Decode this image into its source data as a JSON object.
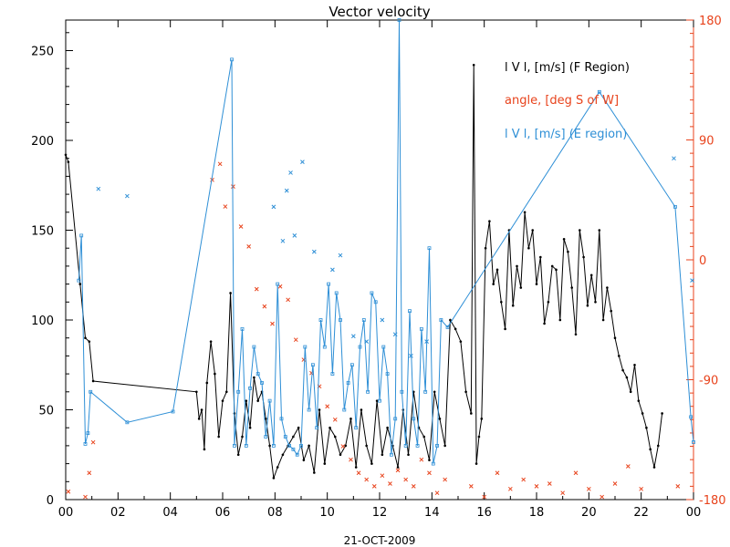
{
  "chart_data": {
    "type": "line",
    "title": "Vector velocity",
    "xlabel": "21-OCT-2009",
    "ylabel": "",
    "y2label": "",
    "xlim": [
      0,
      24
    ],
    "ylim": [
      0,
      267
    ],
    "y2lim": [
      -180,
      180
    ],
    "x_ticks": [
      "00",
      "02",
      "04",
      "06",
      "08",
      "10",
      "12",
      "14",
      "16",
      "18",
      "20",
      "22",
      "00"
    ],
    "y_ticks": [
      "0",
      "50",
      "100",
      "150",
      "200",
      "250"
    ],
    "y2_ticks": [
      "-180",
      "-90",
      "0",
      "90",
      "180"
    ],
    "colors": {
      "f_region": "#000000",
      "angle": "#e8431c",
      "e_region": "#2e8fd6",
      "axis": "#000000"
    },
    "legend": [
      {
        "label": "l V l, [m/s] (F Region)",
        "color": "#000000"
      },
      {
        "label": "angle, [deg S of W]",
        "color": "#e8431c"
      },
      {
        "label": "l V l, [m/s] (E region)",
        "color": "#2e8fd6"
      }
    ],
    "series": [
      {
        "name": "l V l, [m/s] (F Region)",
        "axis": "left",
        "style": "line-dots",
        "x": [
          0.0,
          0.1,
          0.55,
          0.75,
          0.9,
          1.05,
          5.0,
          5.1,
          5.2,
          5.3,
          5.4,
          5.55,
          5.7,
          5.85,
          6.0,
          6.15,
          6.3,
          6.45,
          6.6,
          6.75,
          6.9,
          7.05,
          7.2,
          7.35,
          7.5,
          7.65,
          7.8,
          7.95,
          8.1,
          8.3,
          8.5,
          8.7,
          8.9,
          9.1,
          9.3,
          9.5,
          9.7,
          9.9,
          10.1,
          10.3,
          10.5,
          10.7,
          10.9,
          11.1,
          11.3,
          11.5,
          11.7,
          11.9,
          12.1,
          12.3,
          12.5,
          12.7,
          12.9,
          13.1,
          13.3,
          13.5,
          13.7,
          13.9,
          14.1,
          14.3,
          14.5,
          14.7,
          14.9,
          15.1,
          15.3,
          15.5,
          15.6,
          15.7,
          15.8,
          15.9,
          16.05,
          16.2,
          16.35,
          16.5,
          16.65,
          16.8,
          16.95,
          17.1,
          17.25,
          17.4,
          17.55,
          17.7,
          17.85,
          18.0,
          18.15,
          18.3,
          18.45,
          18.6,
          18.75,
          18.9,
          19.05,
          19.2,
          19.35,
          19.5,
          19.65,
          19.8,
          19.95,
          20.1,
          20.25,
          20.4,
          20.55,
          20.7,
          20.85,
          21.0,
          21.15,
          21.3,
          21.45,
          21.6,
          21.75,
          21.9,
          22.05,
          22.2,
          22.35,
          22.5,
          22.65,
          22.8
        ],
        "values": [
          192,
          188,
          120,
          90,
          88,
          66,
          60,
          45,
          50,
          28,
          65,
          88,
          70,
          35,
          55,
          60,
          115,
          48,
          25,
          35,
          55,
          40,
          68,
          55,
          60,
          45,
          30,
          12,
          18,
          25,
          30,
          35,
          40,
          22,
          30,
          15,
          50,
          20,
          40,
          35,
          25,
          30,
          45,
          18,
          50,
          30,
          20,
          55,
          25,
          40,
          30,
          18,
          50,
          25,
          60,
          40,
          35,
          22,
          60,
          45,
          30,
          100,
          95,
          88,
          60,
          48,
          242,
          20,
          35,
          45,
          140,
          155,
          120,
          128,
          110,
          95,
          150,
          108,
          130,
          118,
          160,
          140,
          150,
          120,
          135,
          98,
          110,
          130,
          128,
          100,
          145,
          138,
          118,
          92,
          150,
          135,
          108,
          125,
          110,
          150,
          100,
          118,
          105,
          90,
          80,
          72,
          68,
          60,
          75,
          55,
          48,
          40,
          28,
          18,
          30,
          48
        ]
      },
      {
        "name": "angle, [deg S of W]",
        "axis": "right",
        "style": "markers",
        "x": [
          0.1,
          0.75,
          0.9,
          1.05,
          5.6,
          5.9,
          6.1,
          6.4,
          6.7,
          7.0,
          7.3,
          7.6,
          7.9,
          8.2,
          8.5,
          8.8,
          9.1,
          9.4,
          9.7,
          10.0,
          10.3,
          10.6,
          10.9,
          11.2,
          11.5,
          11.8,
          12.1,
          12.4,
          12.7,
          13.0,
          13.3,
          13.6,
          13.9,
          14.2,
          14.5,
          15.5,
          16.0,
          16.5,
          17.0,
          17.5,
          18.0,
          18.5,
          19.0,
          19.5,
          20.0,
          20.5,
          21.0,
          21.5,
          22.0,
          23.4
        ],
        "values": [
          -174,
          -178,
          -160,
          -137,
          60,
          72,
          40,
          55,
          25,
          10,
          -22,
          -35,
          -48,
          -20,
          -30,
          -60,
          -75,
          -85,
          -95,
          -110,
          -120,
          -140,
          -150,
          -160,
          -165,
          -170,
          -162,
          -168,
          -158,
          -165,
          -170,
          -150,
          -160,
          -175,
          -165,
          -170,
          -178,
          -160,
          -172,
          -165,
          -170,
          -168,
          -175,
          -160,
          -172,
          -178,
          -168,
          -155,
          -172,
          -170
        ]
      },
      {
        "name": "l V l, [m/s] (E region)",
        "axis": "left",
        "style": "line-dots",
        "x": [
          0.5,
          0.6,
          0.75,
          0.85,
          0.95,
          2.35,
          4.1,
          6.35,
          6.45,
          6.6,
          6.75,
          6.9,
          7.05,
          7.2,
          7.35,
          7.5,
          7.65,
          7.8,
          7.95,
          8.1,
          8.25,
          8.4,
          8.55,
          8.7,
          8.85,
          9.0,
          9.15,
          9.3,
          9.45,
          9.6,
          9.75,
          9.9,
          10.05,
          10.2,
          10.35,
          10.5,
          10.65,
          10.8,
          10.95,
          11.1,
          11.25,
          11.4,
          11.55,
          11.7,
          11.85,
          12.0,
          12.15,
          12.3,
          12.45,
          12.6,
          12.75,
          12.85,
          13.0,
          13.15,
          13.3,
          13.45,
          13.6,
          13.75,
          13.9,
          14.05,
          14.2,
          14.35,
          14.6,
          20.4,
          23.3,
          23.9,
          24.0
        ],
        "values": [
          122,
          147,
          31,
          37,
          60,
          43,
          49,
          245,
          30,
          60,
          95,
          30,
          62,
          85,
          70,
          65,
          35,
          55,
          30,
          120,
          45,
          35,
          30,
          28,
          25,
          30,
          85,
          50,
          75,
          40,
          100,
          85,
          120,
          70,
          115,
          100,
          50,
          65,
          75,
          40,
          85,
          100,
          60,
          115,
          110,
          55,
          85,
          70,
          25,
          45,
          267,
          60,
          30,
          105,
          45,
          30,
          95,
          60,
          140,
          20,
          30,
          100,
          96,
          227,
          163,
          46,
          32
        ]
      }
    ],
    "e_region_extra_markers": {
      "x": [
        1.25,
        2.35,
        7.95,
        8.3,
        8.45,
        8.6,
        8.75,
        9.05,
        9.5,
        10.2,
        10.5,
        11.0,
        11.5,
        12.1,
        12.6,
        13.2,
        13.8,
        23.25,
        23.95
      ],
      "values": [
        173,
        169,
        163,
        144,
        172,
        182,
        147,
        188,
        138,
        128,
        136,
        91,
        88,
        100,
        92,
        80,
        88,
        190,
        122
      ]
    }
  }
}
